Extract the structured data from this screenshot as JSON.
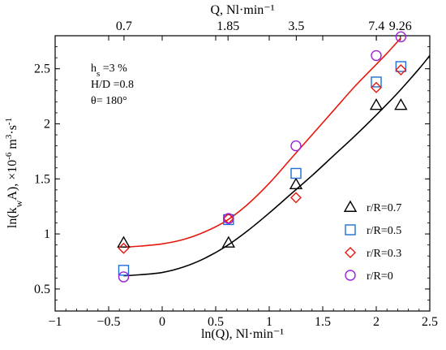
{
  "chart_data": {
    "type": "scatter",
    "xlabel": "ln(Q), Nl·min⁻¹",
    "x2label": "Q, Nl·min⁻¹",
    "ylabel": "ln(kwA), ×10⁻⁶ m³·s⁻¹",
    "ylabel_parts": {
      "pre": "ln(k",
      "sub": "w",
      "mid": "A), ×10",
      "sup1": "-6",
      "unit": " m",
      "sup2": "3",
      "dot": "·s",
      "sup3": "-1"
    },
    "xlim": [
      -1,
      2.5
    ],
    "ylim": [
      0.3,
      2.8
    ],
    "x_ticks": [
      -1,
      -0.5,
      0,
      0.5,
      1,
      1.5,
      2,
      2.5
    ],
    "x_tick_labels": [
      "−1",
      "−0.5",
      "0",
      "0.5",
      "1",
      "1.5",
      "2",
      "2.5"
    ],
    "y_ticks": [
      0.5,
      1,
      1.5,
      2,
      2.5
    ],
    "y_tick_labels": [
      "0.5",
      "1",
      "1.5",
      "2",
      "2.5"
    ],
    "top_ticks": [
      0.7,
      1.85,
      3.5,
      7.4,
      9.26
    ],
    "top_tick_labels": [
      "0.7",
      "1.85",
      "3.5",
      "7.4",
      "9.26"
    ],
    "annotations": [
      {
        "id": "hs",
        "text_main": "h",
        "text_sub": "s",
        "text_rest": " =3 %"
      },
      {
        "id": "hd",
        "text": "H/D =0.8"
      },
      {
        "id": "theta",
        "text": "θ= 180°"
      }
    ],
    "series": [
      {
        "name": "r/R=0.7",
        "marker": "triangle",
        "color": "#000000",
        "x": [
          -0.36,
          0.62,
          1.25,
          2.0,
          2.23
        ],
        "y": [
          0.92,
          0.92,
          1.45,
          2.17,
          2.17
        ]
      },
      {
        "name": "r/R=0.5",
        "marker": "square",
        "color": "#1f6fd6",
        "x": [
          -0.36,
          0.62,
          1.25,
          2.0,
          2.23
        ],
        "y": [
          0.67,
          1.13,
          1.55,
          2.38,
          2.52
        ]
      },
      {
        "name": "r/R=0.3",
        "marker": "diamond",
        "color": "#e8180c",
        "x": [
          -0.36,
          0.62,
          1.25,
          2.0,
          2.23
        ],
        "y": [
          0.87,
          1.14,
          1.33,
          2.33,
          2.49
        ]
      },
      {
        "name": "r/R=0",
        "marker": "circle",
        "color": "#9b1fd6",
        "x": [
          -0.36,
          0.62,
          1.25,
          2.0,
          2.23
        ],
        "y": [
          0.61,
          1.14,
          1.8,
          2.62,
          2.79
        ]
      }
    ],
    "fit_lines": [
      {
        "color": "#000000",
        "x": [
          -0.36,
          -0.2,
          0,
          0.2,
          0.4,
          0.6,
          0.8,
          1.0,
          1.2,
          1.4,
          1.6,
          1.8,
          2.0,
          2.2,
          2.4,
          2.5
        ],
        "y": [
          0.62,
          0.63,
          0.65,
          0.7,
          0.78,
          0.89,
          1.03,
          1.19,
          1.36,
          1.53,
          1.71,
          1.89,
          2.08,
          2.28,
          2.5,
          2.62
        ]
      },
      {
        "color": "#e8180c",
        "x": [
          -0.36,
          -0.2,
          0,
          0.2,
          0.4,
          0.6,
          0.8,
          1.0,
          1.2,
          1.4,
          1.6,
          1.8,
          2.0,
          2.1,
          2.23
        ],
        "y": [
          0.88,
          0.89,
          0.91,
          0.95,
          1.02,
          1.12,
          1.27,
          1.46,
          1.68,
          1.9,
          2.12,
          2.34,
          2.54,
          2.64,
          2.78
        ]
      }
    ],
    "legend_position": "lower-right",
    "grid": false
  }
}
